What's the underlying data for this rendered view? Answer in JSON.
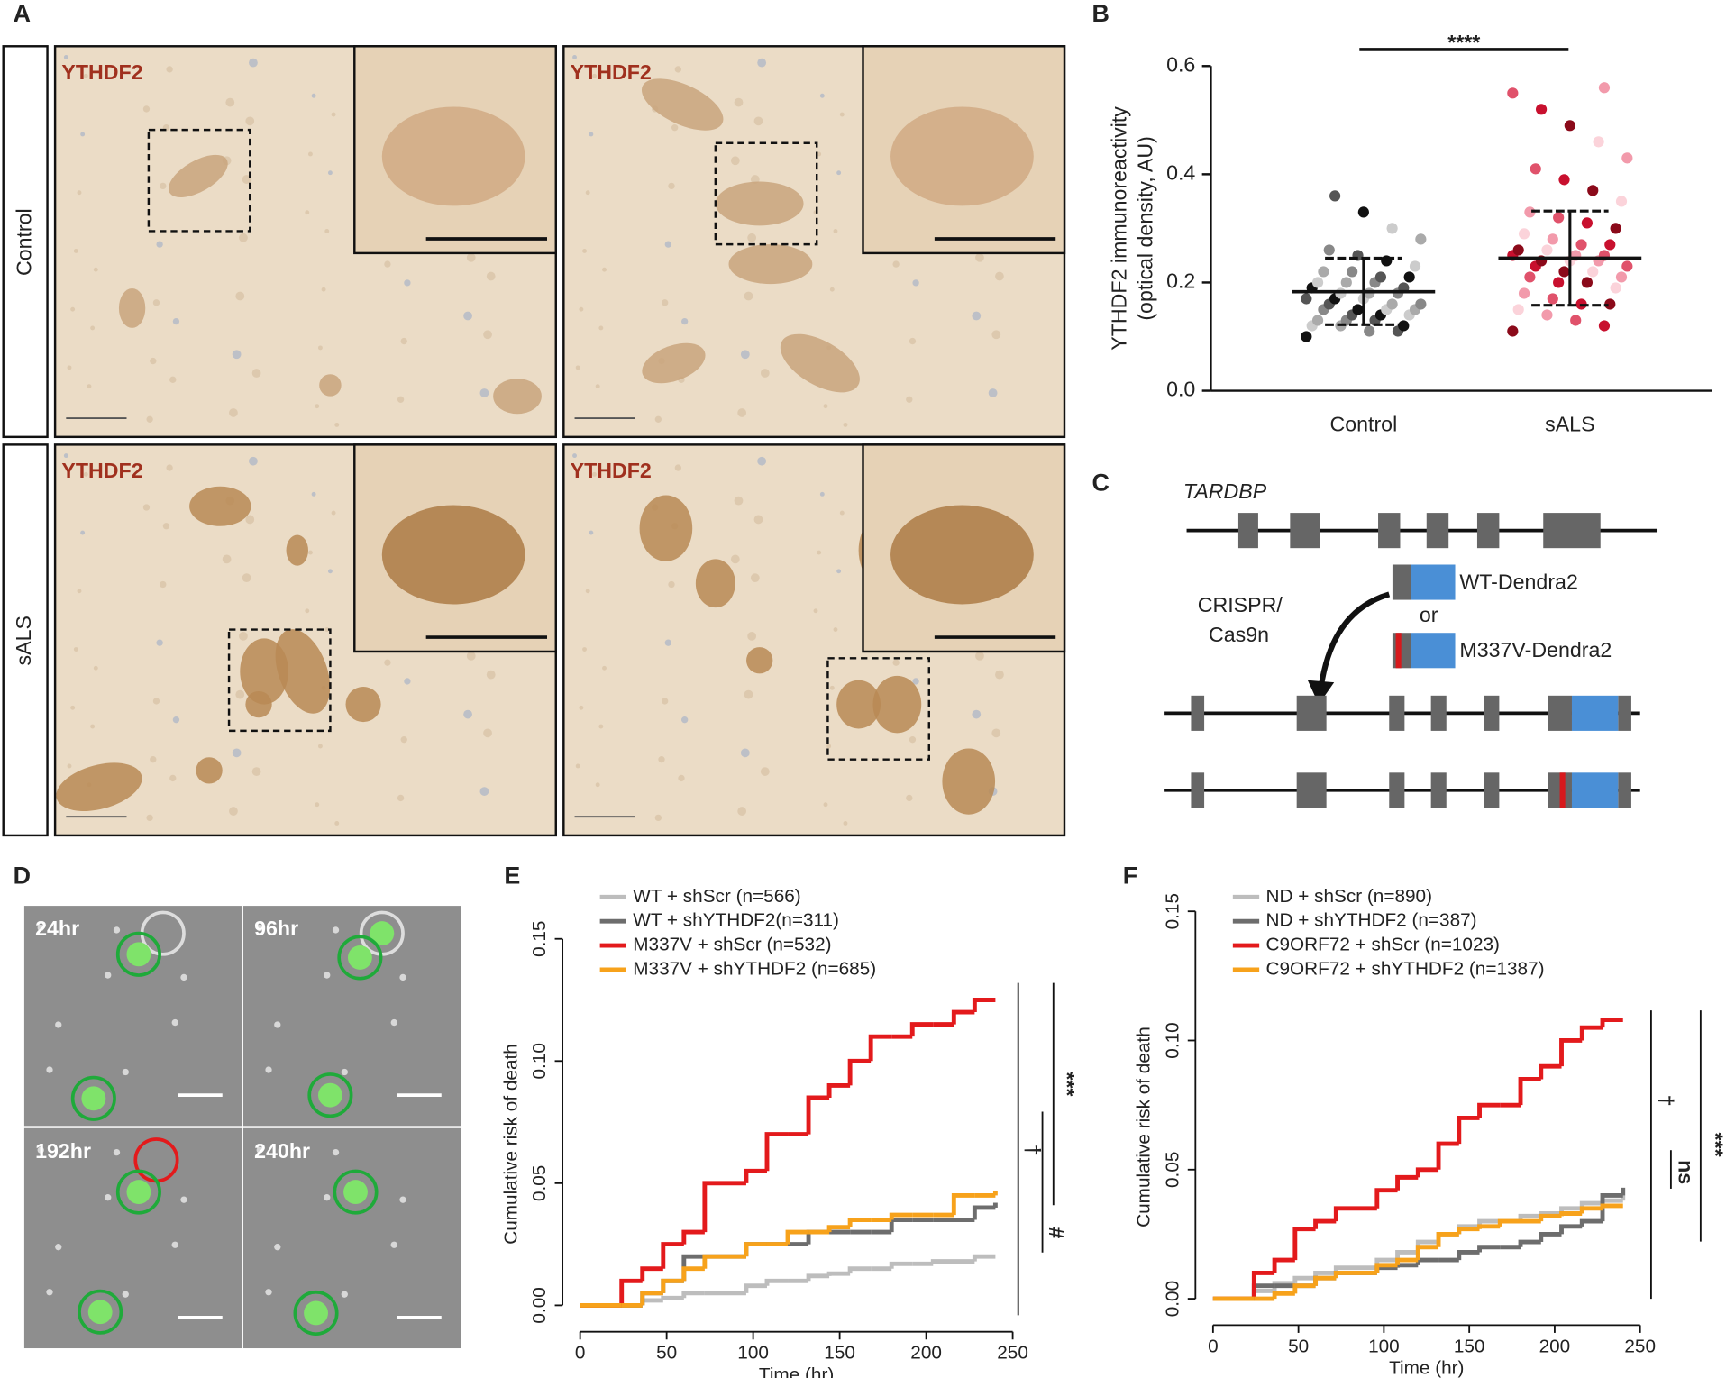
{
  "panel_labels": [
    "A",
    "B",
    "C",
    "D",
    "E",
    "F"
  ],
  "panel_a": {
    "stain": "YTHDF2",
    "rows": [
      "Control",
      "sALS"
    ]
  },
  "panel_c": {
    "gene": "TARDBP",
    "method": [
      "CRISPR/",
      "Cas9n"
    ],
    "constructs": [
      "WT-Dendra2",
      "M337V-Dendra2"
    ],
    "or": "or"
  },
  "panel_d": {
    "timepoints": [
      "24hr",
      "96hr",
      "192hr",
      "240hr"
    ]
  },
  "chart_data": [
    {
      "type": "strip",
      "ylabel": [
        "YTHDF2 immunoreactivity",
        "(optical density, AU)"
      ],
      "categories": [
        "Control",
        "sALS"
      ],
      "ylim": [
        0,
        0.6
      ],
      "yticks": [
        {
          "value": 0,
          "label": "0.0"
        },
        0.2,
        0.4,
        0.6
      ],
      "annotation": "****",
      "groups": [
        {
          "colors": [
            "#111111",
            "#555555",
            "#888888",
            "#aaaaaa",
            "#cccccc"
          ],
          "mean": 0.183,
          "lower": 0.122,
          "upper": 0.245,
          "values": [
            0.1,
            0.11,
            0.11,
            0.12,
            0.12,
            0.12,
            0.13,
            0.13,
            0.13,
            0.14,
            0.14,
            0.14,
            0.15,
            0.15,
            0.15,
            0.15,
            0.16,
            0.16,
            0.16,
            0.17,
            0.17,
            0.17,
            0.18,
            0.18,
            0.18,
            0.19,
            0.19,
            0.2,
            0.2,
            0.2,
            0.21,
            0.21,
            0.22,
            0.22,
            0.23,
            0.24,
            0.25,
            0.26,
            0.28,
            0.3,
            0.33,
            0.36
          ]
        },
        {
          "colors": [
            "#8b0a1a",
            "#c8102e",
            "#e0526b",
            "#f29aab",
            "#fbd3da"
          ],
          "mean": 0.245,
          "lower": 0.158,
          "upper": 0.332,
          "values": [
            0.11,
            0.12,
            0.13,
            0.14,
            0.15,
            0.16,
            0.16,
            0.17,
            0.18,
            0.19,
            0.2,
            0.2,
            0.21,
            0.21,
            0.22,
            0.22,
            0.23,
            0.23,
            0.24,
            0.24,
            0.24,
            0.25,
            0.25,
            0.25,
            0.26,
            0.26,
            0.27,
            0.27,
            0.28,
            0.29,
            0.3,
            0.31,
            0.32,
            0.33,
            0.35,
            0.37,
            0.39,
            0.41,
            0.43,
            0.46,
            0.49,
            0.52,
            0.55,
            0.56
          ]
        }
      ]
    },
    {
      "type": "step",
      "ylabel": "Cumulative risk of death",
      "xlabel": "Time (hr)",
      "xlim": [
        0,
        250
      ],
      "xticks": [
        0,
        50,
        100,
        150,
        200,
        250
      ],
      "ylim": [
        0,
        0.15
      ],
      "yticks": [
        {
          "value": 0,
          "label": "0.00"
        },
        {
          "value": 0.05,
          "label": "0.05"
        },
        {
          "value": 0.1,
          "label": "0.10"
        },
        {
          "value": 0.15,
          "label": "0.15"
        }
      ],
      "annotations": [
        "†",
        "***",
        "#"
      ],
      "x": [
        0,
        24,
        36,
        48,
        60,
        72,
        96,
        108,
        120,
        132,
        144,
        156,
        168,
        180,
        192,
        204,
        216,
        228,
        240
      ],
      "series": [
        {
          "name": "WT + shScr (n=566)",
          "color": "#bdbdbd",
          "values": [
            0,
            0,
            0.002,
            0.003,
            0.005,
            0.005,
            0.008,
            0.01,
            0.01,
            0.012,
            0.013,
            0.015,
            0.015,
            0.017,
            0.017,
            0.018,
            0.018,
            0.02,
            0.02
          ]
        },
        {
          "name": "WT + shYTHDF2(n=311)",
          "color": "#6d6d6d",
          "values": [
            0,
            0,
            0.005,
            0.01,
            0.02,
            0.02,
            0.025,
            0.025,
            0.025,
            0.03,
            0.03,
            0.03,
            0.03,
            0.035,
            0.035,
            0.035,
            0.035,
            0.04,
            0.042
          ]
        },
        {
          "name": "M337V + shScr (n=532)",
          "color": "#e31a1c",
          "values": [
            0,
            0.01,
            0.015,
            0.025,
            0.03,
            0.05,
            0.055,
            0.07,
            0.07,
            0.085,
            0.09,
            0.1,
            0.11,
            0.11,
            0.115,
            0.115,
            0.12,
            0.125,
            0.125
          ]
        },
        {
          "name": "M337V + shYTHDF2 (n=685)",
          "color": "#f7a21b",
          "values": [
            0,
            0,
            0.005,
            0.01,
            0.015,
            0.02,
            0.025,
            0.025,
            0.03,
            0.03,
            0.032,
            0.035,
            0.035,
            0.037,
            0.037,
            0.037,
            0.045,
            0.045,
            0.047
          ]
        }
      ]
    },
    {
      "type": "step",
      "ylabel": "Cumulative risk of death",
      "xlabel": "Time (hr)",
      "xlim": [
        0,
        250
      ],
      "xticks": [
        0,
        50,
        100,
        150,
        200,
        250
      ],
      "ylim": [
        0,
        0.15
      ],
      "yticks": [
        {
          "value": 0,
          "label": "0.00"
        },
        {
          "value": 0.05,
          "label": "0.05"
        },
        {
          "value": 0.1,
          "label": "0.10"
        },
        {
          "value": 0.15,
          "label": "0.15"
        }
      ],
      "annotations": [
        "†",
        "***",
        "ns"
      ],
      "x": [
        0,
        24,
        36,
        48,
        60,
        72,
        96,
        108,
        120,
        132,
        144,
        156,
        168,
        180,
        192,
        204,
        216,
        228,
        240
      ],
      "series": [
        {
          "name": "ND + shScr (n=890)",
          "color": "#bdbdbd",
          "values": [
            0,
            0.003,
            0.006,
            0.008,
            0.01,
            0.012,
            0.015,
            0.018,
            0.022,
            0.025,
            0.028,
            0.03,
            0.03,
            0.032,
            0.033,
            0.035,
            0.037,
            0.038,
            0.04
          ]
        },
        {
          "name": "ND + shYTHDF2 (n=387)",
          "color": "#6d6d6d",
          "values": [
            0,
            0.005,
            0.005,
            0.005,
            0.008,
            0.01,
            0.012,
            0.013,
            0.015,
            0.015,
            0.018,
            0.02,
            0.02,
            0.022,
            0.025,
            0.028,
            0.03,
            0.04,
            0.043
          ]
        },
        {
          "name": "C9ORF72  + shScr (n=1023)",
          "color": "#e31a1c",
          "values": [
            0,
            0.01,
            0.015,
            0.027,
            0.03,
            0.035,
            0.042,
            0.047,
            0.05,
            0.06,
            0.07,
            0.075,
            0.075,
            0.085,
            0.09,
            0.1,
            0.105,
            0.108,
            0.108
          ]
        },
        {
          "name": "C9ORF72 + shYTHDF2 (n=1387)",
          "color": "#f7a21b",
          "values": [
            0,
            0,
            0.002,
            0.005,
            0.008,
            0.01,
            0.013,
            0.015,
            0.02,
            0.025,
            0.027,
            0.028,
            0.03,
            0.03,
            0.032,
            0.033,
            0.035,
            0.036,
            0.036
          ]
        }
      ]
    }
  ]
}
